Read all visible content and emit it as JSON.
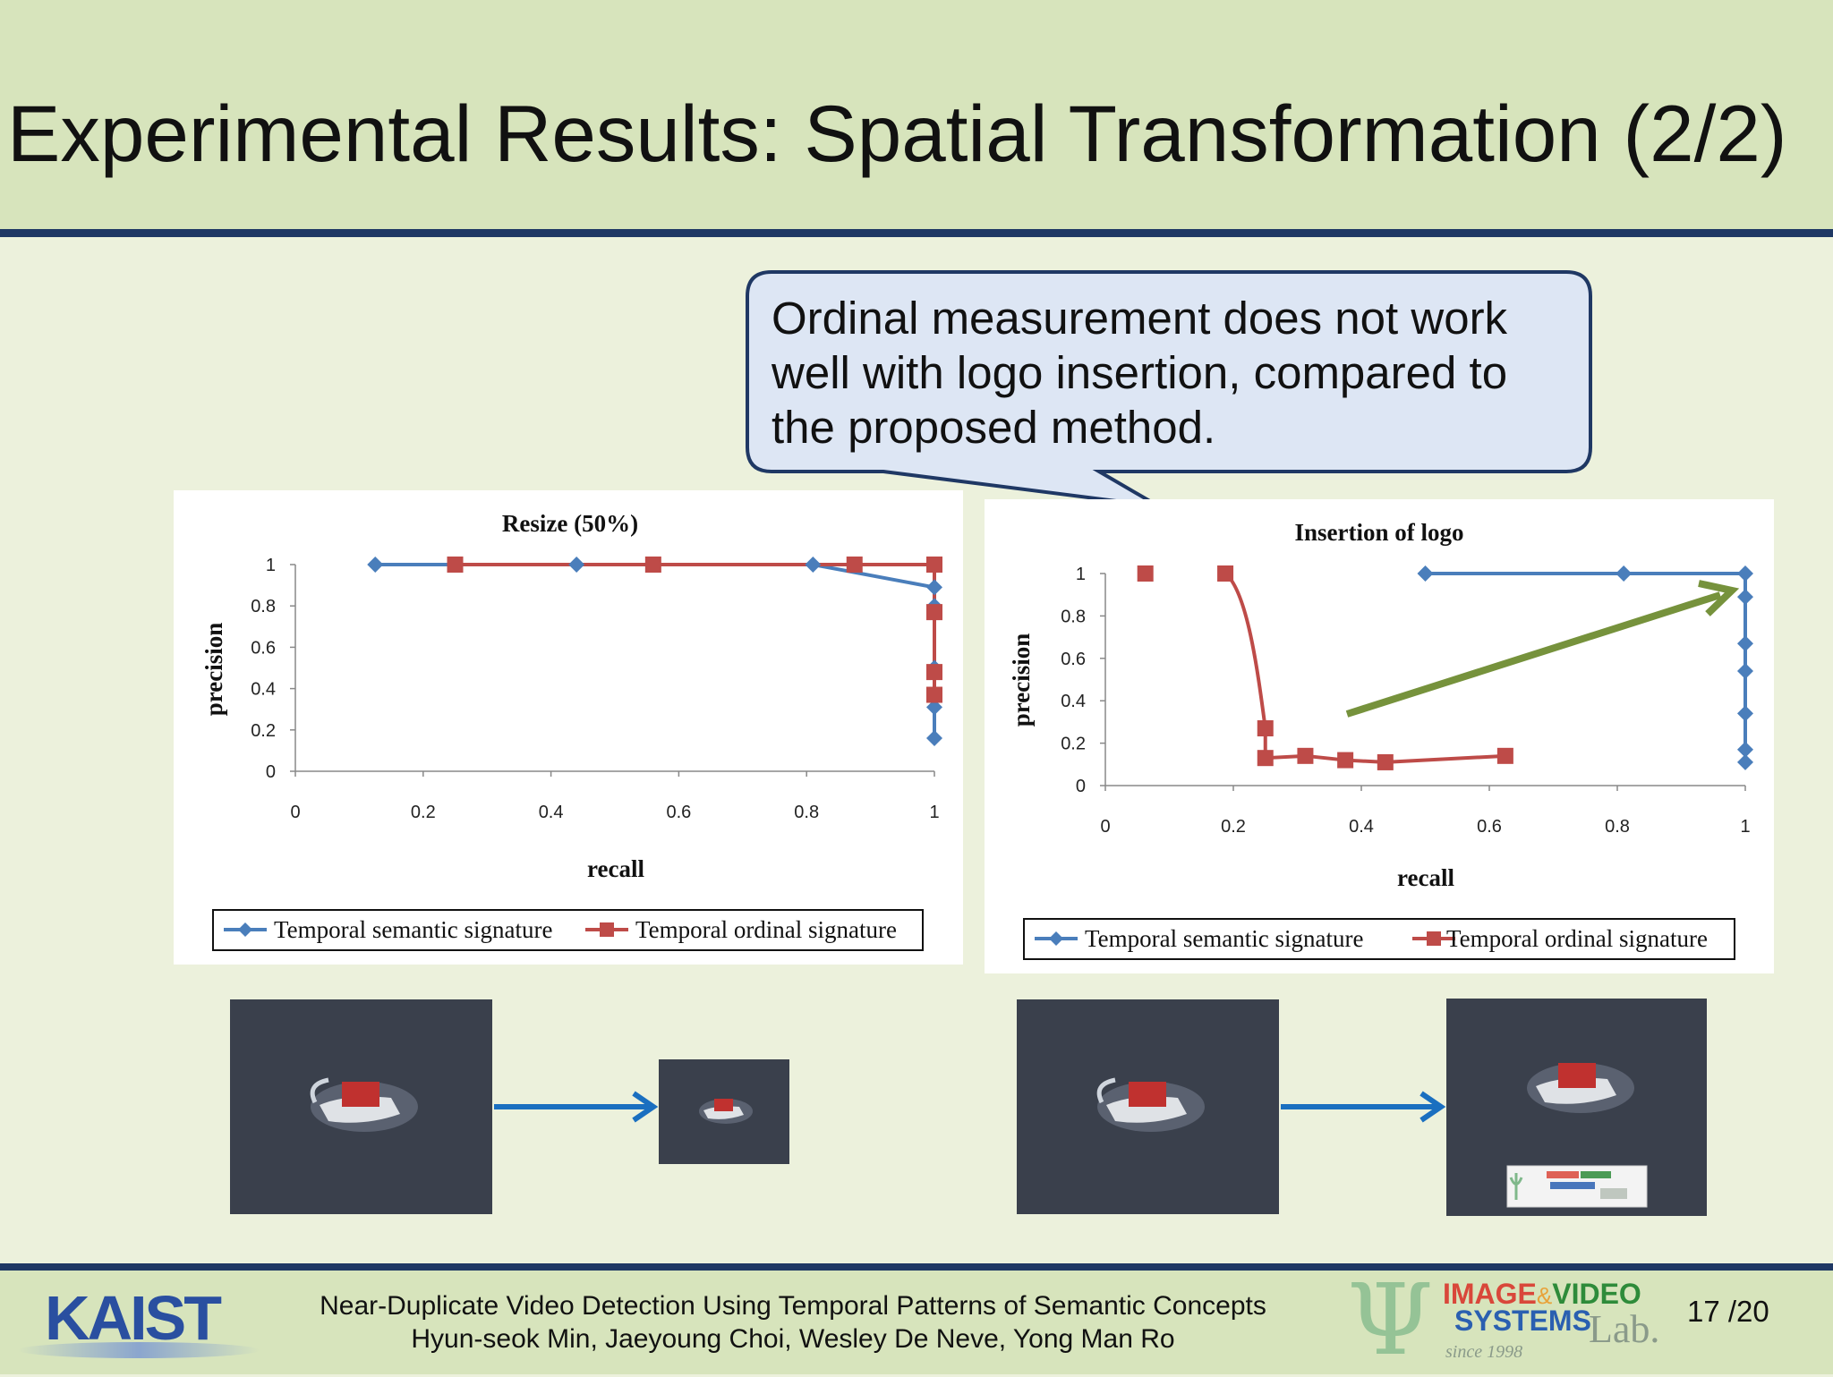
{
  "slide": {
    "title": "Experimental Results: Spatial Transformation (2/2)",
    "callout": "Ordinal measurement does not work well with logo insertion, compared to the proposed method.",
    "accent_colors": {
      "title_band": "#d7e4bc",
      "rule": "#1f3864",
      "callout_fill": "#dde6f4",
      "arrow_green": "#76923c",
      "arrow_blue": "#1a6fc0"
    }
  },
  "footer": {
    "line1": "Near-Duplicate Video Detection Using Temporal Patterns of Semantic Concepts",
    "line2": "Hyun-seok Min, Jaeyoung Choi, Wesley De Neve, Yong Man Ro",
    "institution_logo": "KAIST",
    "lab_logo": {
      "word1": "IMAGE",
      "amp": "&",
      "word2": "VIDEO",
      "word3": "SYSTEMS",
      "word4": "Lab.",
      "since": "since 1998"
    },
    "page": "17 /20"
  },
  "chart_data": [
    {
      "type": "line",
      "title": "Resize (50%)",
      "xlabel": "recall",
      "ylabel": "precision",
      "xlim": [
        0,
        1
      ],
      "ylim": [
        0,
        1
      ],
      "x_ticks": [
        "0",
        "0.2",
        "0.4",
        "0.6",
        "0.8",
        "1"
      ],
      "y_ticks": [
        "0",
        "0.2",
        "0.4",
        "0.6",
        "0.8",
        "1"
      ],
      "legend_position": "bottom",
      "series": [
        {
          "name": "Temporal semantic signature",
          "marker": "diamond",
          "color": "#4a7ebb",
          "x": [
            0.125,
            0.44,
            0.81,
            1.0,
            1.0,
            1.0,
            1.0,
            1.0
          ],
          "y": [
            1.0,
            1.0,
            1.0,
            0.89,
            0.8,
            0.5,
            0.31,
            0.16
          ]
        },
        {
          "name": "Temporal ordinal signature",
          "marker": "square",
          "color": "#be4b48",
          "x": [
            0.25,
            0.56,
            0.875,
            1.0,
            1.0,
            1.0,
            1.0
          ],
          "y": [
            1.0,
            1.0,
            1.0,
            1.0,
            0.77,
            0.48,
            0.37
          ]
        }
      ]
    },
    {
      "type": "line",
      "title": "Insertion of logo",
      "xlabel": "recall",
      "ylabel": "precision",
      "xlim": [
        0,
        1
      ],
      "ylim": [
        0,
        1
      ],
      "x_ticks": [
        "0",
        "0.2",
        "0.4",
        "0.6",
        "0.8",
        "1"
      ],
      "y_ticks": [
        "0",
        "0.2",
        "0.4",
        "0.6",
        "0.8",
        "1"
      ],
      "legend_position": "bottom",
      "series": [
        {
          "name": "Temporal semantic signature",
          "marker": "diamond",
          "color": "#4a7ebb",
          "x": [
            0.5,
            0.81,
            1.0,
            1.0,
            1.0,
            1.0,
            1.0,
            1.0,
            1.0
          ],
          "y": [
            1.0,
            1.0,
            1.0,
            0.89,
            0.67,
            0.54,
            0.34,
            0.17,
            0.11
          ]
        },
        {
          "name": "Temporal ordinal signature",
          "marker": "square",
          "color": "#be4b48",
          "x": [
            0.0625,
            0.1875,
            0.25,
            0.25,
            0.3125,
            0.375,
            0.4375,
            0.625
          ],
          "y": [
            1.0,
            1.0,
            0.27,
            0.13,
            0.14,
            0.12,
            0.11,
            0.14
          ]
        }
      ]
    }
  ]
}
